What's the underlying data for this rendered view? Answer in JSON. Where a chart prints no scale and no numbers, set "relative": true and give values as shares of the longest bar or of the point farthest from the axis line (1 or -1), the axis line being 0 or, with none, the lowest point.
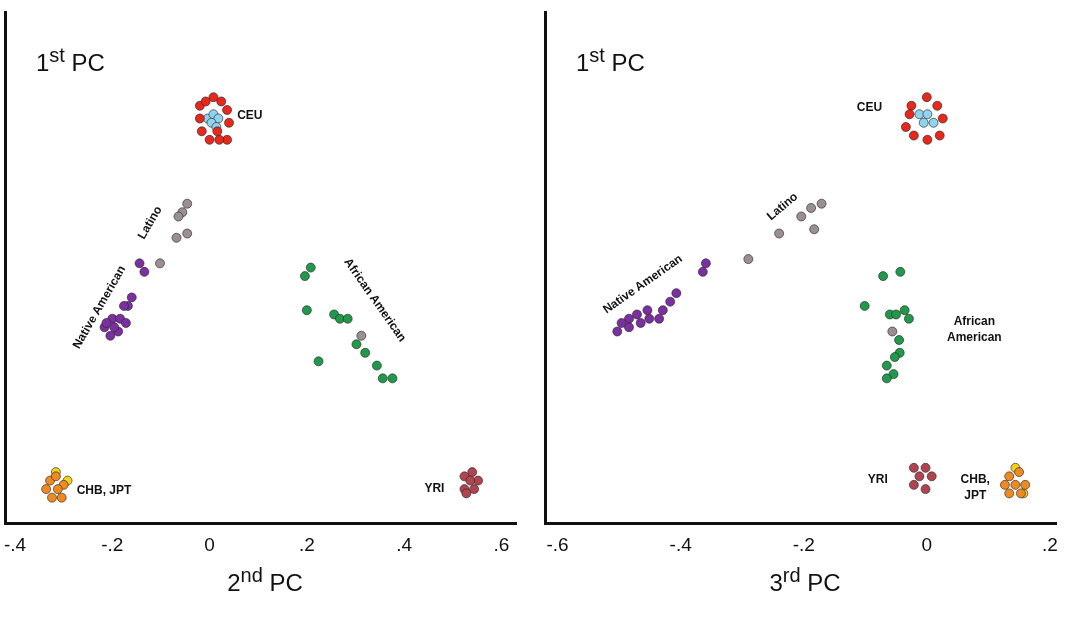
{
  "chart_data": [
    {
      "type": "scatter",
      "relative": true,
      "xlabel": "2$^{nd}$ PC",
      "ylabel": "1$^{st}$ PC",
      "xlim": [
        -0.42,
        0.63
      ],
      "xticks": [
        {
          "value": -0.4,
          "label": "-.4"
        },
        {
          "value": -0.2,
          "label": "-.2"
        },
        0,
        {
          "value": 0.2,
          "label": ".2"
        },
        {
          "value": 0.4,
          "label": ".4"
        },
        {
          "value": 0.6,
          "label": ".6"
        }
      ],
      "grid": false,
      "legend": false,
      "marker": "circle",
      "tick_labels": "x",
      "series": [
        {
          "name": "CEU",
          "color": "#e8281c",
          "x": [
            -0.02,
            -0.008,
            0.008,
            0.024,
            0.036,
            0.04,
            0.036,
            0.02,
            0.0,
            -0.016,
            -0.02,
            0.016
          ],
          "values": [
            0.98,
            0.99,
            1.0,
            0.99,
            0.97,
            0.94,
            0.9,
            0.9,
            0.9,
            0.92,
            0.95,
            0.92
          ]
        },
        {
          "color": "#8fd3ee",
          "x": [
            -0.004,
            0.008,
            0.018,
            0.004,
            0.014
          ],
          "values": [
            0.95,
            0.96,
            0.95,
            0.94,
            0.93
          ]
        },
        {
          "name": "Latino",
          "color": "#9b9090",
          "x": [
            -0.046,
            -0.056,
            -0.064,
            -0.068,
            -0.046,
            -0.102,
            0.312
          ],
          "values": [
            0.75,
            0.73,
            0.72,
            0.67,
            0.68,
            0.61,
            0.44
          ]
        },
        {
          "name": "Native American",
          "color": "#7b2fa0",
          "x": [
            -0.144,
            -0.134,
            -0.16,
            -0.168,
            -0.176,
            -0.216,
            -0.2,
            -0.184,
            -0.172,
            -0.188,
            -0.204,
            -0.212,
            -0.196
          ],
          "values": [
            0.61,
            0.59,
            0.53,
            0.51,
            0.51,
            0.46,
            0.48,
            0.48,
            0.47,
            0.45,
            0.44,
            0.47,
            0.46
          ]
        },
        {
          "name": "African American",
          "color": "#1f9a4a",
          "x": [
            0.196,
            0.208,
            0.2,
            0.256,
            0.268,
            0.284,
            0.302,
            0.32,
            0.344,
            0.356,
            0.376,
            0.224
          ],
          "values": [
            0.58,
            0.6,
            0.5,
            0.49,
            0.48,
            0.48,
            0.42,
            0.4,
            0.37,
            0.34,
            0.34,
            0.38
          ]
        },
        {
          "name": "CHB, JPT",
          "color": "#ee8a20",
          "x": [
            -0.328,
            -0.316,
            -0.3,
            -0.304,
            -0.324,
            -0.336,
            -0.312
          ],
          "values": [
            0.1,
            0.11,
            0.09,
            0.06,
            0.06,
            0.08,
            0.08
          ]
        },
        {
          "color": "#f2d21a",
          "x": [
            -0.292,
            -0.316
          ],
          "values": [
            0.1,
            0.12
          ]
        },
        {
          "name": "YRI",
          "color": "#b04450",
          "x": [
            0.524,
            0.54,
            0.552,
            0.544,
            0.524,
            0.536,
            0.528
          ],
          "values": [
            0.11,
            0.12,
            0.1,
            0.08,
            0.08,
            0.1,
            0.07
          ]
        }
      ]
    },
    {
      "type": "scatter",
      "relative": true,
      "xlabel": "3$^{rd}$ PC",
      "ylabel": "1$^{st}$ PC",
      "xlim": [
        -0.62,
        0.21
      ],
      "xticks": [
        {
          "value": -0.6,
          "label": "-.6"
        },
        {
          "value": -0.4,
          "label": "-.4"
        },
        {
          "value": -0.2,
          "label": "-.2"
        },
        0,
        {
          "value": 0.2,
          "label": ".2"
        }
      ],
      "grid": false,
      "legend": false,
      "marker": "circle",
      "tick_labels": "x",
      "series": [
        {
          "name": "CEU",
          "color": "#e8281c",
          "x": [
            -0.025,
            0.0,
            0.017,
            0.026,
            0.021,
            0.001,
            -0.021,
            -0.034,
            -0.028
          ],
          "values": [
            0.98,
            1.0,
            0.98,
            0.95,
            0.91,
            0.9,
            0.91,
            0.93,
            0.96
          ]
        },
        {
          "color": "#8fd3ee",
          "x": [
            -0.012,
            0.001,
            0.011,
            -0.005
          ],
          "values": [
            0.96,
            0.96,
            0.94,
            0.94
          ]
        },
        {
          "name": "Latino",
          "color": "#9b9090",
          "x": [
            -0.171,
            -0.188,
            -0.204,
            -0.183,
            -0.24,
            -0.29,
            -0.056
          ],
          "values": [
            0.75,
            0.74,
            0.72,
            0.69,
            0.68,
            0.62,
            0.45
          ]
        },
        {
          "name": "Native American",
          "color": "#7b2fa0",
          "x": [
            -0.359,
            -0.364,
            -0.407,
            -0.417,
            -0.429,
            -0.435,
            -0.454,
            -0.471,
            -0.484,
            -0.496,
            -0.503,
            -0.484,
            -0.465,
            -0.451
          ],
          "values": [
            0.61,
            0.59,
            0.54,
            0.52,
            0.5,
            0.48,
            0.5,
            0.49,
            0.48,
            0.47,
            0.45,
            0.46,
            0.47,
            0.48
          ]
        },
        {
          "name": "African American",
          "color": "#1f9a4a",
          "x": [
            -0.043,
            -0.071,
            -0.101,
            -0.06,
            -0.05,
            -0.036,
            -0.029,
            -0.045,
            -0.044,
            -0.052,
            -0.065,
            -0.054,
            -0.065
          ],
          "values": [
            0.59,
            0.58,
            0.51,
            0.49,
            0.49,
            0.5,
            0.48,
            0.43,
            0.4,
            0.39,
            0.37,
            0.35,
            0.34
          ]
        },
        {
          "name": "YRI",
          "color": "#b04450",
          "x": [
            -0.021,
            -0.002,
            0.008,
            -0.002,
            -0.021,
            -0.012
          ],
          "values": [
            0.13,
            0.13,
            0.11,
            0.08,
            0.09,
            0.11
          ]
        },
        {
          "name": "CHB, JPT",
          "color": "#ee8a20",
          "x": [
            0.134,
            0.15,
            0.16,
            0.153,
            0.134,
            0.127,
            0.144
          ],
          "values": [
            0.11,
            0.12,
            0.09,
            0.07,
            0.07,
            0.09,
            0.09
          ]
        },
        {
          "color": "#f2d21a",
          "x": [
            0.144,
            0.157
          ],
          "values": [
            0.13,
            0.07
          ]
        }
      ]
    }
  ]
}
